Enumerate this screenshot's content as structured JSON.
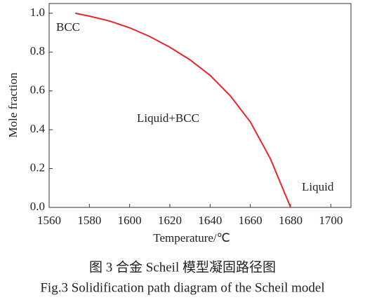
{
  "chart_data": {
    "type": "line",
    "x_label": "Temperature/℃",
    "y_label": "Mole fraction",
    "x": [
      1573,
      1580,
      1590,
      1600,
      1610,
      1620,
      1630,
      1640,
      1650,
      1660,
      1670,
      1680
    ],
    "values": [
      1.0,
      0.985,
      0.96,
      0.925,
      0.88,
      0.825,
      0.76,
      0.68,
      0.575,
      0.44,
      0.25,
      0.0
    ],
    "color": "#e8262a",
    "xlim": [
      1560,
      1710
    ],
    "xticks": [
      1560,
      1580,
      1600,
      1620,
      1640,
      1660,
      1680,
      1700
    ],
    "ylim": [
      0,
      1.05
    ],
    "yticks": [
      {
        "value": 0,
        "label": "0.0"
      },
      0.2,
      0.4,
      0.6,
      0.8,
      {
        "value": 1,
        "label": "1.0"
      }
    ],
    "annotations": [
      "BCC",
      "Liquid+BCC",
      "Liquid"
    ],
    "caption_cn": "图 3 合金 Scheil 模型凝固路径图",
    "caption_en": "Fig.3  Solidification path diagram of the Scheil model"
  }
}
